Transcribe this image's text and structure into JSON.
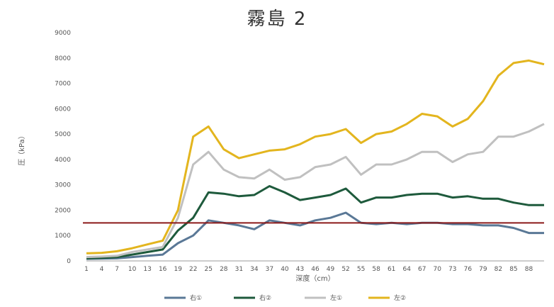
{
  "chart_data": {
    "type": "line",
    "title": "霧島 2",
    "xlabel": "深度（cm）",
    "ylabel": "圧（kPa）",
    "ylim": [
      0,
      9000
    ],
    "yticks": [
      0,
      1000,
      2000,
      3000,
      4000,
      5000,
      6000,
      7000,
      8000,
      9000
    ],
    "x_tick_labels": [
      "1",
      "4",
      "7",
      "10",
      "13",
      "16",
      "19",
      "22",
      "25",
      "28",
      "31",
      "34",
      "37",
      "40",
      "43",
      "46",
      "49",
      "52",
      "55",
      "58",
      "61",
      "64",
      "67",
      "70",
      "73",
      "76",
      "79",
      "82",
      "85",
      "88"
    ],
    "x": [
      1,
      4,
      7,
      10,
      13,
      16,
      19,
      22,
      25,
      28,
      31,
      34,
      37,
      40,
      43,
      46,
      49,
      52,
      55,
      58,
      61,
      64,
      67,
      70,
      73,
      76,
      79,
      82,
      85,
      88,
      91
    ],
    "series": [
      {
        "name": "右①",
        "color": "#5a7896",
        "values": [
          80,
          90,
          100,
          150,
          200,
          250,
          700,
          1000,
          1600,
          1500,
          1400,
          1250,
          1600,
          1500,
          1400,
          1600,
          1700,
          1900,
          1500,
          1450,
          1500,
          1450,
          1500,
          1500,
          1450,
          1450,
          1400,
          1400,
          1300,
          1100,
          1100
        ]
      },
      {
        "name": "右②",
        "color": "#1e5a3c",
        "values": [
          100,
          120,
          150,
          250,
          350,
          450,
          1200,
          1700,
          2700,
          2650,
          2550,
          2600,
          2950,
          2700,
          2400,
          2500,
          2600,
          2850,
          2300,
          2500,
          2500,
          2600,
          2650,
          2650,
          2500,
          2550,
          2450,
          2450,
          2300,
          2200,
          2200
        ]
      },
      {
        "name": "左①",
        "color": "#c0c0c0",
        "values": [
          150,
          170,
          200,
          350,
          450,
          550,
          1700,
          3800,
          4300,
          3600,
          3300,
          3250,
          3600,
          3200,
          3300,
          3700,
          3800,
          4100,
          3400,
          3800,
          3800,
          4000,
          4300,
          4300,
          3900,
          4200,
          4300,
          4900,
          4900,
          5100,
          5400
        ]
      },
      {
        "name": "左②",
        "color": "#e3b51e",
        "values": [
          300,
          320,
          380,
          500,
          650,
          800,
          2000,
          4900,
          5300,
          4400,
          4050,
          4200,
          4350,
          4400,
          4600,
          4900,
          5000,
          5200,
          4650,
          5000,
          5100,
          5400,
          5800,
          5700,
          5300,
          5600,
          6300,
          7300,
          7800,
          7900,
          7750
        ]
      }
    ],
    "reference_line": {
      "value": 1500,
      "color": "#8b1a1a"
    },
    "grid": false,
    "legend_position": "bottom"
  }
}
